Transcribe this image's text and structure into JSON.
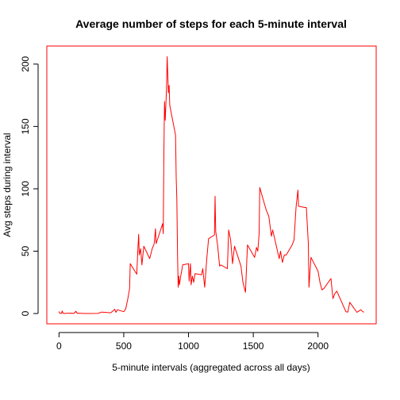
{
  "colors": {
    "series": "#ff0000",
    "box": "#ff0000",
    "text": "#000000",
    "axis": "#000000"
  },
  "chart_data": {
    "type": "line",
    "title": "Average number of steps for each 5-minute interval",
    "xlabel": "5-minute intervals (aggregated across all days)",
    "ylabel": "Avg steps during interval",
    "xlim": [
      -94,
      2449
    ],
    "ylim": [
      -8.25,
      214.5
    ],
    "x_ticks": [
      0,
      500,
      1000,
      1500,
      2000
    ],
    "x_tick_labels": [
      "0",
      "500",
      "1000",
      "1500",
      "2000"
    ],
    "y_ticks": [
      0,
      50,
      100,
      150,
      200
    ],
    "y_tick_labels": [
      "0",
      "50",
      "100",
      "150",
      "200"
    ],
    "grid": false,
    "legend": "none",
    "series": [
      {
        "color": "#ff0000",
        "x": [
          0,
          5,
          10,
          15,
          20,
          25,
          30,
          40,
          55,
          100,
          115,
          130,
          140,
          150,
          200,
          230,
          300,
          330,
          400,
          430,
          440,
          450,
          500,
          505,
          515,
          530,
          545,
          550,
          600,
          610,
          615,
          620,
          630,
          640,
          655,
          700,
          720,
          735,
          745,
          750,
          800,
          805,
          810,
          815,
          820,
          830,
          835,
          840,
          845,
          850,
          855,
          900,
          905,
          910,
          915,
          920,
          925,
          930,
          940,
          955,
          1000,
          1005,
          1015,
          1020,
          1030,
          1040,
          1050,
          1100,
          1110,
          1125,
          1140,
          1155,
          1200,
          1205,
          1210,
          1225,
          1240,
          1250,
          1300,
          1310,
          1325,
          1340,
          1355,
          1405,
          1420,
          1440,
          1455,
          1510,
          1525,
          1535,
          1545,
          1550,
          1600,
          1620,
          1640,
          1650,
          1700,
          1710,
          1725,
          1740,
          1755,
          1800,
          1815,
          1830,
          1845,
          1850,
          1900,
          1910,
          1925,
          1930,
          1945,
          2000,
          2015,
          2030,
          2045,
          2100,
          2115,
          2130,
          2145,
          2200,
          2215,
          2230,
          2245,
          2300,
          2315,
          2330,
          2345,
          2355
        ],
        "values": [
          1.7,
          0.3,
          0.1,
          0.2,
          0.1,
          2.1,
          0.5,
          0.0,
          0.2,
          0.3,
          0.0,
          1.8,
          0.2,
          0.3,
          0.0,
          0.0,
          0.1,
          1.2,
          0.6,
          3.4,
          1.0,
          3.0,
          1.5,
          2.2,
          3.8,
          11.0,
          20.0,
          40.0,
          31.5,
          54.0,
          63.5,
          47.0,
          52.0,
          39.0,
          54.0,
          44.0,
          52.0,
          56.0,
          68.0,
          56.0,
          72.0,
          64.0,
          129.0,
          170.0,
          155.0,
          180.0,
          206.0,
          192.0,
          177.0,
          183.0,
          167.0,
          143.0,
          109.0,
          92.0,
          47.0,
          21.0,
          30.0,
          23.0,
          30.0,
          39.0,
          40.0,
          26.0,
          40.0,
          23.0,
          30.0,
          25.0,
          32.0,
          31.0,
          36.0,
          21.0,
          43.0,
          60.0,
          63.0,
          94.0,
          66.0,
          54.0,
          38.0,
          39.0,
          36.0,
          67.0,
          59.0,
          40.0,
          54.0,
          38.0,
          25.0,
          17.0,
          55.0,
          45.0,
          53.0,
          50.0,
          64.0,
          101.0,
          83.0,
          78.0,
          62.0,
          67.0,
          44.0,
          50.0,
          41.0,
          47.0,
          47.0,
          55.0,
          59.0,
          85.0,
          99.0,
          86.0,
          85.0,
          85.0,
          56.0,
          21.0,
          45.0,
          34.0,
          25.0,
          19.0,
          20.0,
          28.0,
          12.0,
          16.0,
          18.0,
          5.0,
          1.5,
          1.2,
          9.0,
          1.0,
          2.0,
          3.0,
          1.5,
          1.1
        ]
      }
    ]
  }
}
